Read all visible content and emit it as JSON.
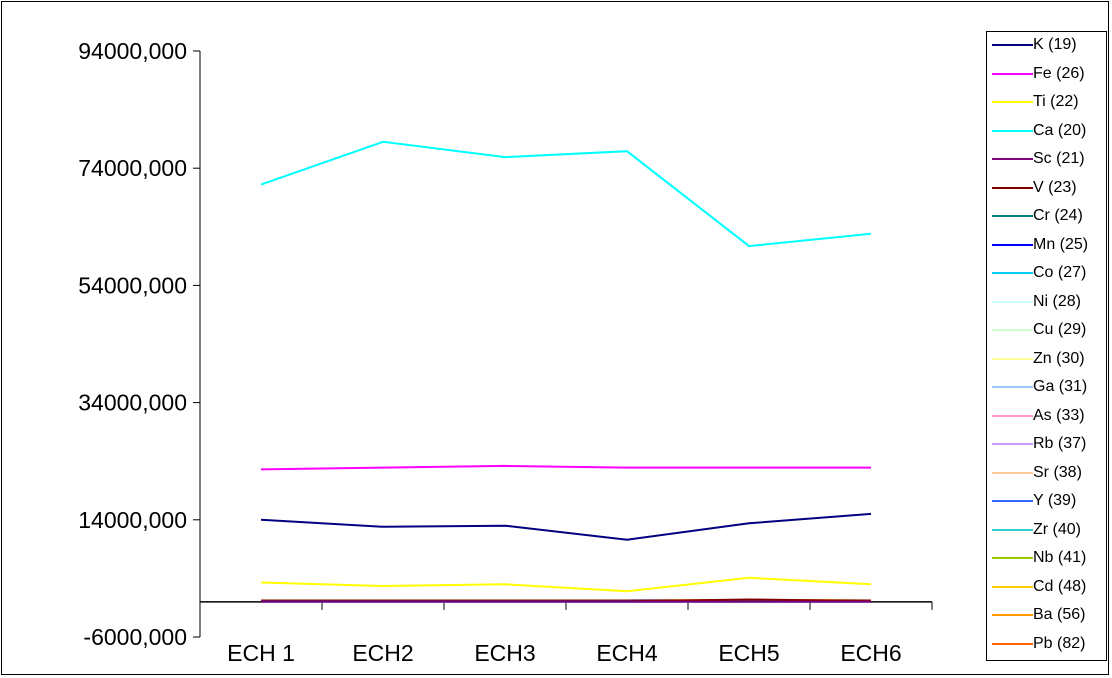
{
  "chart_data": {
    "type": "line",
    "title": "",
    "xlabel": "",
    "ylabel": "",
    "categories": [
      "ECH 1",
      "ECH2",
      "ECH3",
      "ECH4",
      "ECH5",
      "ECH6"
    ],
    "y_ticks": [
      "-6000,000",
      "14000,000",
      "34000,000",
      "54000,000",
      "74000,000",
      "94000,000"
    ],
    "y_tick_values": [
      -6000,
      14000,
      34000,
      54000,
      74000,
      94000
    ],
    "ylim": [
      -6000,
      94000
    ],
    "x_axis_crosses_at": 0,
    "grid": false,
    "legend_position": "right",
    "series": [
      {
        "name": "K (19)",
        "color": "#000080",
        "values": [
          14000,
          12800,
          13000,
          10600,
          13400,
          15000
        ]
      },
      {
        "name": "Fe (26)",
        "color": "#ff00ff",
        "values": [
          22600,
          22900,
          23200,
          22900,
          22900,
          22900
        ]
      },
      {
        "name": "Ti (22)",
        "color": "#ffff00",
        "values": [
          3300,
          2700,
          3000,
          1800,
          4100,
          3000
        ]
      },
      {
        "name": "Ca (20)",
        "color": "#00ffff",
        "values": [
          71200,
          78500,
          75900,
          76900,
          60700,
          62800
        ]
      },
      {
        "name": "Sc (21)",
        "color": "#800080",
        "values": [
          0,
          0,
          0,
          0,
          0,
          0
        ]
      },
      {
        "name": "V (23)",
        "color": "#800000",
        "values": [
          100,
          100,
          100,
          100,
          400,
          150
        ]
      },
      {
        "name": "Cr (24)",
        "color": "#008080",
        "values": [
          100,
          100,
          100,
          100,
          100,
          100
        ]
      },
      {
        "name": "Mn (25)",
        "color": "#0000ff",
        "values": [
          200,
          200,
          200,
          200,
          250,
          200
        ]
      },
      {
        "name": "Co (27)",
        "color": "#00ccff",
        "values": [
          0,
          0,
          0,
          0,
          0,
          0
        ]
      },
      {
        "name": "Ni (28)",
        "color": "#ccffff",
        "values": [
          0,
          0,
          0,
          0,
          0,
          0
        ]
      },
      {
        "name": "Cu (29)",
        "color": "#ccffcc",
        "values": [
          0,
          0,
          0,
          0,
          0,
          0
        ]
      },
      {
        "name": "Zn (30)",
        "color": "#ffff99",
        "values": [
          0,
          0,
          0,
          0,
          0,
          0
        ]
      },
      {
        "name": "Ga (31)",
        "color": "#99ccff",
        "values": [
          0,
          0,
          0,
          0,
          0,
          0
        ]
      },
      {
        "name": "As (33)",
        "color": "#ff99cc",
        "values": [
          0,
          0,
          0,
          0,
          0,
          0
        ]
      },
      {
        "name": "Rb (37)",
        "color": "#cc99ff",
        "values": [
          0,
          0,
          0,
          0,
          0,
          0
        ]
      },
      {
        "name": "Sr (38)",
        "color": "#ffcc99",
        "values": [
          200,
          200,
          200,
          200,
          200,
          200
        ]
      },
      {
        "name": "Y (39)",
        "color": "#3366ff",
        "values": [
          0,
          0,
          0,
          0,
          0,
          0
        ]
      },
      {
        "name": "Zr (40)",
        "color": "#33cccc",
        "values": [
          100,
          100,
          100,
          100,
          100,
          100
        ]
      },
      {
        "name": "Nb (41)",
        "color": "#99cc00",
        "values": [
          0,
          0,
          0,
          0,
          0,
          0
        ]
      },
      {
        "name": "Cd (48)",
        "color": "#ffcc00",
        "values": [
          0,
          0,
          0,
          0,
          0,
          0
        ]
      },
      {
        "name": "Ba (56)",
        "color": "#ff9900",
        "values": [
          300,
          300,
          300,
          300,
          300,
          300
        ]
      },
      {
        "name": "Pb (82)",
        "color": "#ff6600",
        "values": [
          0,
          0,
          0,
          0,
          0,
          0
        ]
      }
    ]
  }
}
